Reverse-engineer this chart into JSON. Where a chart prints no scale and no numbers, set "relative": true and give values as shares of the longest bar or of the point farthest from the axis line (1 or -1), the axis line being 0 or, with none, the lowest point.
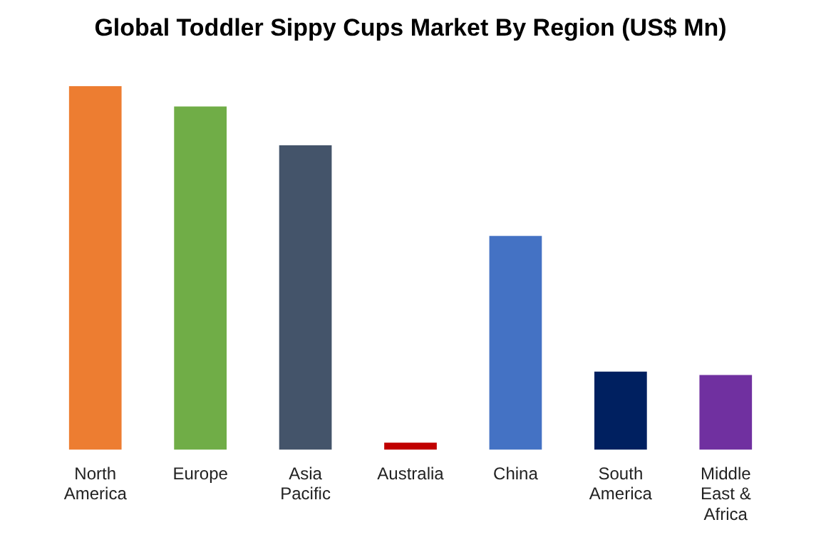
{
  "chart_data": {
    "type": "bar",
    "title": "Global Toddler Sippy Cups Market By Region (US$ Mn)",
    "relative": true,
    "grid": false,
    "legend": false,
    "categories": [
      "North America",
      "Europe",
      "Asia Pacific",
      "Australia",
      "China",
      "South America",
      "Middle East & Africa"
    ],
    "values": [
      1,
      0.944,
      0.837,
      0.02,
      0.588,
      0.215,
      0.206
    ],
    "colors": [
      "#ed7d31",
      "#70ad47",
      "#44546a",
      "#c00000",
      "#4472c4",
      "#002060",
      "#7030a0"
    ]
  }
}
